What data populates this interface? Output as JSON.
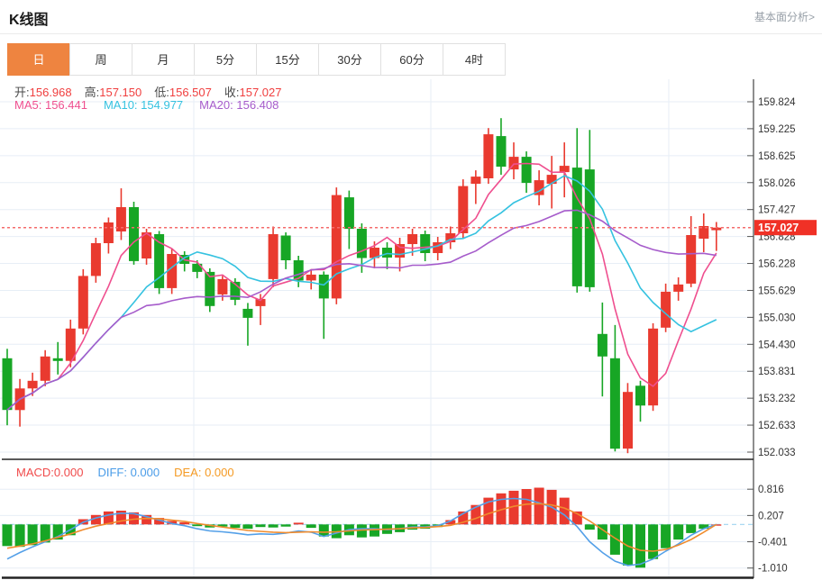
{
  "header": {
    "title": "K线图",
    "link": "基本面分析>"
  },
  "tabs": {
    "active_index": 0,
    "items": [
      {
        "key": "day",
        "label": "日"
      },
      {
        "key": "week",
        "label": "周"
      },
      {
        "key": "month",
        "label": "月"
      },
      {
        "key": "5min",
        "label": "5分"
      },
      {
        "key": "15min",
        "label": "15分"
      },
      {
        "key": "30min",
        "label": "30分"
      },
      {
        "key": "60min",
        "label": "60分"
      },
      {
        "key": "4hour",
        "label": "4时"
      }
    ]
  },
  "ohlc": {
    "open_label": "开:",
    "open": "156.968",
    "high_label": "高:",
    "high": "157.150",
    "low_label": "低:",
    "low": "156.507",
    "close_label": "收:",
    "close": "157.027"
  },
  "ma_legend": {
    "ma5_label": "MA5:",
    "ma5": "156.441",
    "ma10_label": "MA10:",
    "ma10": "154.977",
    "ma20_label": "MA20:",
    "ma20": "156.408"
  },
  "macd_legend": {
    "macd_label": "MACD:",
    "macd": "0.000",
    "diff_label": "DIFF:",
    "diff": "0.000",
    "dea_label": "DEA:",
    "dea": "0.000"
  },
  "current_price": {
    "value": "157.027"
  },
  "colors": {
    "up": "#e93a2f",
    "down": "#17a625",
    "ma5": "#ef4f8f",
    "ma10": "#35c2e0",
    "ma20": "#a65ccb",
    "diff_line": "#54a0e8",
    "dea_line": "#f08c2e",
    "dotted_line": "#f56c6c",
    "price_tag_bg": "#f03126",
    "tab_active_bg": "#ee8440",
    "grid": "#e7eef6",
    "axis_line": "#444444",
    "axis_text": "#333333",
    "zero_dash": "#9fd4f1",
    "panel_border": "#222222"
  },
  "chart_data": {
    "type": "candlestick",
    "title": "K线图",
    "legend_position": "top-left",
    "grid": true,
    "main": {
      "y_axis_labels": [
        "159.824",
        "159.225",
        "158.625",
        "158.026",
        "157.427",
        "156.828",
        "156.228",
        "155.629",
        "155.030",
        "154.430",
        "153.831",
        "153.232",
        "152.633",
        "152.033"
      ],
      "ylim": [
        152.033,
        159.824
      ],
      "current_price": 157.027,
      "ma_periods": [
        5,
        10,
        20
      ],
      "candles_ohlc_format": [
        "open",
        "high",
        "low",
        "close"
      ],
      "candles": [
        [
          154.12,
          154.33,
          152.63,
          152.97
        ],
        [
          152.97,
          153.66,
          152.6,
          153.45
        ],
        [
          153.45,
          153.8,
          153.28,
          153.62
        ],
        [
          153.62,
          154.3,
          153.5,
          154.16
        ],
        [
          154.12,
          154.48,
          153.76,
          154.06
        ],
        [
          154.06,
          154.98,
          153.92,
          154.78
        ],
        [
          154.78,
          156.1,
          154.65,
          155.95
        ],
        [
          155.95,
          156.8,
          155.8,
          156.68
        ],
        [
          156.68,
          157.25,
          156.45,
          157.14
        ],
        [
          156.94,
          157.9,
          156.75,
          157.48
        ],
        [
          157.48,
          157.6,
          156.2,
          156.28
        ],
        [
          156.34,
          157.0,
          156.2,
          156.92
        ],
        [
          156.88,
          156.95,
          155.55,
          155.68
        ],
        [
          155.68,
          156.55,
          155.55,
          156.44
        ],
        [
          156.42,
          156.5,
          156.05,
          156.22
        ],
        [
          156.22,
          156.3,
          155.9,
          156.04
        ],
        [
          156.04,
          156.12,
          155.15,
          155.28
        ],
        [
          155.54,
          155.95,
          155.4,
          155.88
        ],
        [
          155.82,
          155.9,
          155.3,
          155.42
        ],
        [
          155.22,
          155.35,
          154.4,
          155.02
        ],
        [
          155.28,
          155.55,
          154.86,
          155.44
        ],
        [
          155.88,
          157.05,
          155.7,
          156.88
        ],
        [
          156.85,
          156.92,
          156.1,
          156.3
        ],
        [
          156.3,
          156.4,
          155.7,
          155.85
        ],
        [
          155.85,
          156.1,
          155.65,
          155.98
        ],
        [
          155.98,
          156.05,
          154.55,
          155.45
        ],
        [
          155.45,
          157.92,
          155.32,
          157.75
        ],
        [
          157.7,
          157.85,
          156.55,
          157.0
        ],
        [
          157.0,
          157.12,
          156.02,
          156.35
        ],
        [
          156.35,
          156.72,
          156.12,
          156.58
        ],
        [
          156.58,
          156.7,
          156.1,
          156.36
        ],
        [
          156.36,
          156.8,
          156.05,
          156.66
        ],
        [
          156.66,
          157.0,
          156.4,
          156.88
        ],
        [
          156.88,
          156.96,
          156.28,
          156.46
        ],
        [
          156.46,
          156.82,
          156.3,
          156.7
        ],
        [
          156.7,
          157.05,
          156.55,
          156.9
        ],
        [
          156.9,
          158.1,
          156.78,
          157.95
        ],
        [
          158.0,
          158.3,
          157.55,
          158.16
        ],
        [
          158.12,
          159.24,
          158.0,
          159.1
        ],
        [
          159.06,
          159.46,
          158.2,
          158.38
        ],
        [
          158.32,
          158.92,
          158.1,
          158.6
        ],
        [
          158.6,
          158.72,
          157.8,
          158.02
        ],
        [
          157.75,
          158.3,
          157.52,
          158.08
        ],
        [
          158.0,
          158.62,
          157.45,
          158.2
        ],
        [
          158.26,
          158.92,
          157.7,
          158.4
        ],
        [
          158.36,
          159.24,
          155.58,
          155.72
        ],
        [
          158.32,
          159.2,
          155.6,
          155.7
        ],
        [
          154.66,
          155.36,
          153.27,
          154.16
        ],
        [
          154.12,
          154.86,
          152.05,
          152.11
        ],
        [
          152.11,
          153.57,
          152.01,
          153.37
        ],
        [
          153.51,
          153.62,
          152.71,
          153.07
        ],
        [
          153.07,
          154.9,
          152.95,
          154.78
        ],
        [
          154.8,
          155.78,
          154.7,
          155.6
        ],
        [
          155.6,
          155.92,
          155.4,
          155.76
        ],
        [
          155.78,
          157.28,
          155.7,
          156.86
        ],
        [
          156.78,
          157.34,
          156.48,
          157.06
        ],
        [
          156.968,
          157.15,
          156.507,
          157.027
        ]
      ]
    },
    "macd": {
      "y_axis_labels": [
        "0.816",
        "0.207",
        "-0.401",
        "-1.010"
      ],
      "hist": [
        -0.5,
        -0.52,
        -0.48,
        -0.42,
        -0.35,
        -0.25,
        0.12,
        0.22,
        0.3,
        0.32,
        0.28,
        0.22,
        0.15,
        0.08,
        0.05,
        -0.04,
        -0.07,
        -0.05,
        -0.08,
        -0.1,
        -0.06,
        -0.07,
        -0.05,
        0.04,
        -0.08,
        -0.28,
        -0.32,
        -0.25,
        -0.3,
        -0.28,
        -0.22,
        -0.18,
        -0.12,
        -0.1,
        -0.06,
        0.1,
        0.3,
        0.45,
        0.62,
        0.72,
        0.78,
        0.82,
        0.85,
        0.8,
        0.62,
        0.3,
        -0.12,
        -0.35,
        -0.7,
        -0.95,
        -1.0,
        -0.8,
        -0.55,
        -0.35,
        -0.2,
        -0.1,
        0.0
      ],
      "diff": [
        -0.8,
        -0.65,
        -0.52,
        -0.4,
        -0.28,
        -0.12,
        0.05,
        0.15,
        0.22,
        0.26,
        0.25,
        0.18,
        0.1,
        0.02,
        -0.03,
        -0.1,
        -0.15,
        -0.17,
        -0.2,
        -0.24,
        -0.22,
        -0.23,
        -0.2,
        -0.15,
        -0.18,
        -0.28,
        -0.2,
        -0.12,
        -0.1,
        -0.1,
        -0.12,
        -0.1,
        -0.06,
        -0.06,
        -0.03,
        0.08,
        0.25,
        0.4,
        0.52,
        0.58,
        0.6,
        0.58,
        0.5,
        0.4,
        0.22,
        -0.05,
        -0.4,
        -0.65,
        -0.85,
        -0.95,
        -0.92,
        -0.8,
        -0.62,
        -0.45,
        -0.25,
        -0.1,
        0.0
      ],
      "dea": [
        -0.55,
        -0.5,
        -0.45,
        -0.38,
        -0.3,
        -0.22,
        -0.12,
        -0.04,
        0.02,
        0.08,
        0.12,
        0.14,
        0.13,
        0.1,
        0.07,
        0.02,
        -0.02,
        -0.06,
        -0.1,
        -0.14,
        -0.16,
        -0.18,
        -0.19,
        -0.18,
        -0.17,
        -0.18,
        -0.17,
        -0.15,
        -0.13,
        -0.12,
        -0.11,
        -0.1,
        -0.08,
        -0.07,
        -0.05,
        -0.02,
        0.05,
        0.14,
        0.25,
        0.34,
        0.42,
        0.47,
        0.48,
        0.45,
        0.38,
        0.25,
        0.08,
        -0.12,
        -0.32,
        -0.5,
        -0.6,
        -0.62,
        -0.58,
        -0.48,
        -0.35,
        -0.18,
        0.0
      ]
    }
  }
}
